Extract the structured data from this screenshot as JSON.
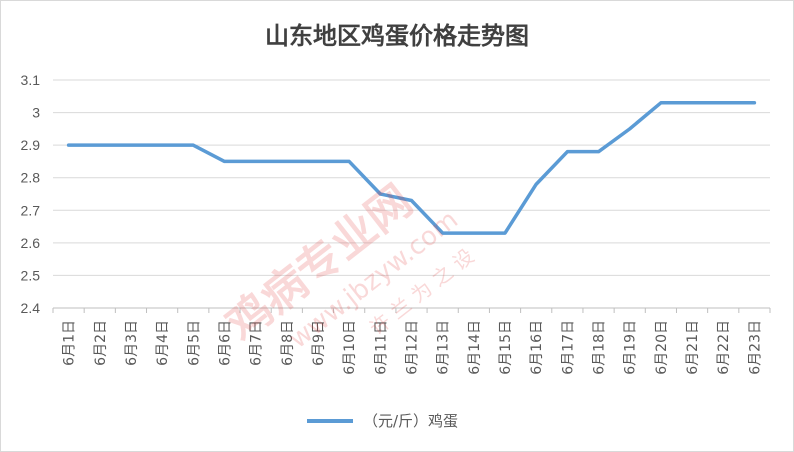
{
  "chart_data": {
    "type": "line",
    "title": "山东地区鸡蛋价格走势图",
    "categories": [
      "6月1日",
      "6月2日",
      "6月3日",
      "6月4日",
      "6月5日",
      "6月6日",
      "6月7日",
      "6月8日",
      "6月9日",
      "6月10日",
      "6月11日",
      "6月12日",
      "6月13日",
      "6月14日",
      "6月15日",
      "6月16日",
      "6月17日",
      "6月18日",
      "6月19日",
      "6月20日",
      "6月21日",
      "6月22日",
      "6月23日"
    ],
    "series": [
      {
        "name": "（元/斤）鸡蛋",
        "values": [
          2.9,
          2.9,
          2.9,
          2.9,
          2.9,
          2.85,
          2.85,
          2.85,
          2.85,
          2.85,
          2.75,
          2.73,
          2.63,
          2.63,
          2.63,
          2.78,
          2.88,
          2.88,
          2.95,
          3.03,
          3.03,
          3.03,
          3.03
        ],
        "color": "#5b9bd5"
      }
    ],
    "y_ticks": [
      "2.4",
      "2.5",
      "2.6",
      "2.7",
      "2.8",
      "2.9",
      "3",
      "3.1"
    ],
    "ylim": [
      2.4,
      3.1
    ],
    "xlabel": "",
    "ylabel": "",
    "grid": true,
    "legend_position": "bottom"
  },
  "watermark": {
    "line1": "鸡病专业网",
    "line2": "www.jbzyw.com",
    "line3": "许 兰 为 之 设"
  }
}
